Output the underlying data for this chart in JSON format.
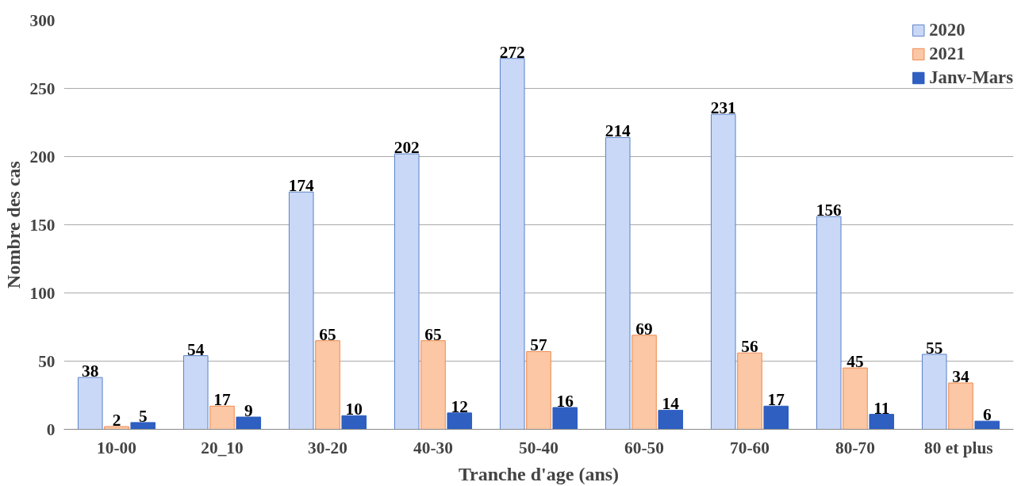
{
  "chart_data": {
    "type": "bar",
    "xlabel": "Tranche d'age (ans)",
    "ylabel": "Nombre des cas",
    "categories": [
      "10-00",
      "20_10",
      "30-20",
      "40-30",
      "50-40",
      "60-50",
      "70-60",
      "80-70",
      "80 et  plus"
    ],
    "series": [
      {
        "name": "2020",
        "color": "#c9d8f6",
        "values": [
          38,
          54,
          174,
          202,
          272,
          214,
          231,
          156,
          55
        ]
      },
      {
        "name": "2021",
        "color": "#fbc7a4",
        "values": [
          2,
          17,
          65,
          65,
          57,
          69,
          56,
          45,
          34
        ]
      },
      {
        "name": "Janv-Mars",
        "color": "#2e5fc1",
        "values": [
          5,
          9,
          10,
          12,
          16,
          14,
          17,
          11,
          6
        ]
      }
    ],
    "ylim": [
      0,
      300
    ],
    "yticks": [
      0,
      50,
      100,
      150,
      200,
      250,
      300
    ],
    "grid": "y",
    "legend": "top right",
    "data_labels": true
  }
}
